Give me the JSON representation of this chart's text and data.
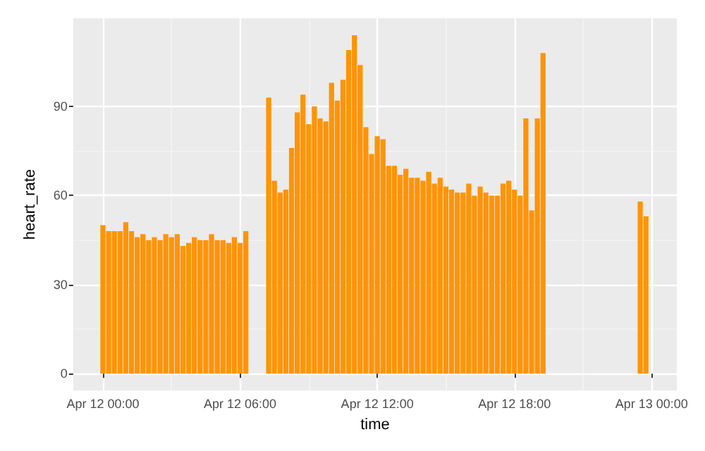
{
  "chart_data": {
    "type": "bar",
    "xlabel": "time",
    "ylabel": "heart_rate",
    "x": [
      "--04-12T00:00",
      "--04-12T00:15",
      "--04-12T00:30",
      "--04-12T00:45",
      "--04-12T01:00",
      "--04-12T01:15",
      "--04-12T01:30",
      "--04-12T01:45",
      "--04-12T02:00",
      "--04-12T02:15",
      "--04-12T02:30",
      "--04-12T02:45",
      "--04-12T03:00",
      "--04-12T03:15",
      "--04-12T03:30",
      "--04-12T03:45",
      "--04-12T04:00",
      "--04-12T04:15",
      "--04-12T04:30",
      "--04-12T04:45",
      "--04-12T05:00",
      "--04-12T05:15",
      "--04-12T05:30",
      "--04-12T05:45",
      "--04-12T06:00",
      "--04-12T06:15",
      "--04-12T07:15",
      "--04-12T07:30",
      "--04-12T07:45",
      "--04-12T08:00",
      "--04-12T08:15",
      "--04-12T08:30",
      "--04-12T08:45",
      "--04-12T09:00",
      "--04-12T09:15",
      "--04-12T09:30",
      "--04-12T09:45",
      "--04-12T10:00",
      "--04-12T10:15",
      "--04-12T10:30",
      "--04-12T10:45",
      "--04-12T11:00",
      "--04-12T11:15",
      "--04-12T11:30",
      "--04-12T11:45",
      "--04-12T12:00",
      "--04-12T12:15",
      "--04-12T12:30",
      "--04-12T12:45",
      "--04-12T13:00",
      "--04-12T13:15",
      "--04-12T13:30",
      "--04-12T13:45",
      "--04-12T14:00",
      "--04-12T14:15",
      "--04-12T14:30",
      "--04-12T14:45",
      "--04-12T15:00",
      "--04-12T15:15",
      "--04-12T15:30",
      "--04-12T15:45",
      "--04-12T16:00",
      "--04-12T16:15",
      "--04-12T16:30",
      "--04-12T16:45",
      "--04-12T17:00",
      "--04-12T17:15",
      "--04-12T17:30",
      "--04-12T17:45",
      "--04-12T18:00",
      "--04-12T18:15",
      "--04-12T18:30",
      "--04-12T18:45",
      "--04-12T19:00",
      "--04-12T19:15",
      "--04-12T23:30",
      "--04-12T23:45"
    ],
    "values": [
      50,
      48,
      48,
      48,
      51,
      48,
      46,
      47,
      45,
      46,
      45,
      47,
      46,
      47,
      43,
      44,
      46,
      45,
      45,
      47,
      45,
      45,
      44,
      46,
      44,
      48,
      93,
      65,
      61,
      62,
      76,
      88,
      94,
      84,
      90,
      86,
      85,
      98,
      92,
      99,
      109,
      114,
      104,
      83,
      74,
      80,
      79,
      70,
      70,
      67,
      69,
      66,
      66,
      65,
      68,
      64,
      66,
      63,
      62,
      61,
      61,
      64,
      60,
      63,
      61,
      60,
      60,
      64,
      65,
      62,
      60,
      86,
      55,
      86,
      108,
      58,
      53
    ],
    "color": "#ff9408",
    "xlim": [
      "--04-11T22:42",
      "--04-13T01:06"
    ],
    "xticks": [
      {
        "value": "--04-12T00:00",
        "label": "Apr 12 00:00"
      },
      {
        "value": "--04-12T06:00",
        "label": "Apr 12 06:00"
      },
      {
        "value": "--04-12T12:00",
        "label": "Apr 12 12:00"
      },
      {
        "value": "--04-12T18:00",
        "label": "Apr 12 18:00"
      },
      {
        "value": "--04-13T00:00",
        "label": "Apr 13 00:00"
      }
    ],
    "ylim": [
      -5.7,
      119.7
    ],
    "yticks": [
      0,
      30,
      60,
      90
    ],
    "grid": true
  }
}
